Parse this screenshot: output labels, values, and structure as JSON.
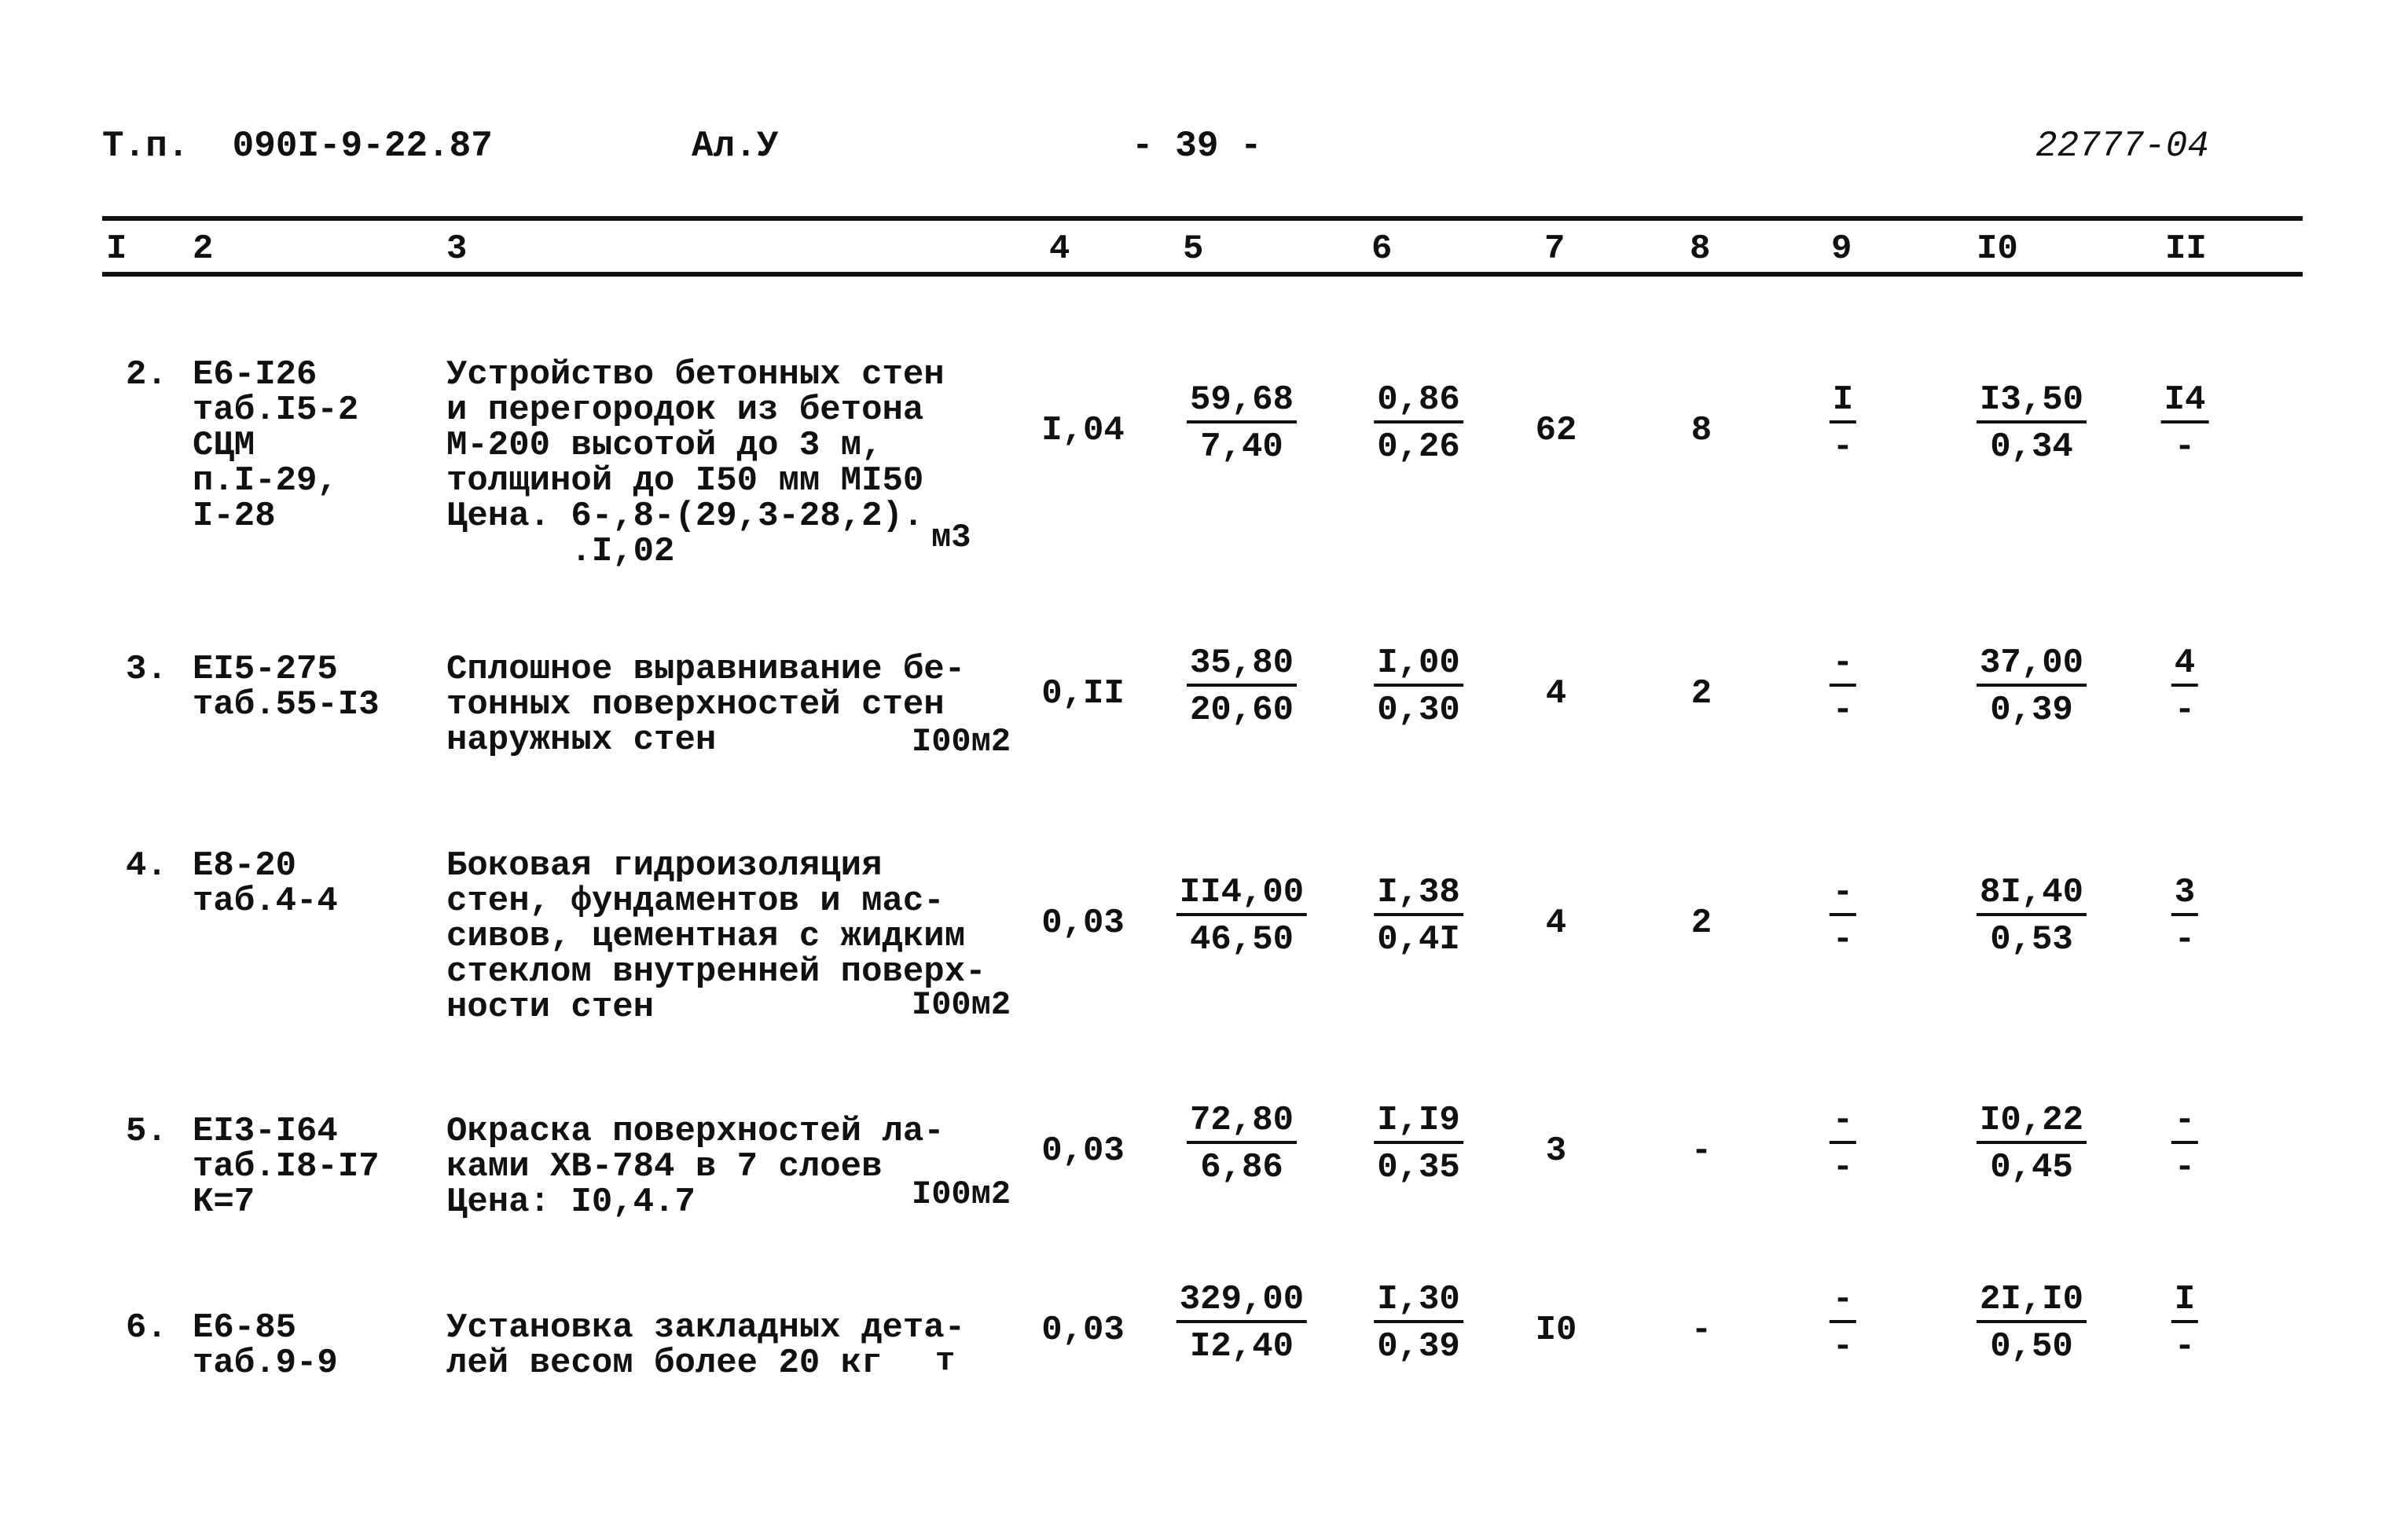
{
  "header": {
    "project": "Т.п.  090I-9-22.87",
    "album": "Ал.У",
    "page": "- 39 -",
    "doc_number": "22777-04"
  },
  "columns": [
    "I",
    "2",
    "3",
    "4",
    "5",
    "6",
    "7",
    "8",
    "9",
    "I0",
    "II"
  ],
  "rows": [
    {
      "num": "2.",
      "code": [
        "Е6-I26",
        "таб.I5-2",
        "СЦМ",
        "п.I-29,",
        "I-28"
      ],
      "description": [
        "Устройство бетонных стен",
        "и перегородок из бетона",
        "М-200 высотой до 3 м,",
        "толщиной до I50 мм МI50",
        "Цена. 6-,8-(29,3-28,2).",
        "      .I,02"
      ],
      "unit": "м3",
      "c4": "I,04",
      "c5": [
        "59,68",
        "7,40"
      ],
      "c6": [
        "0,86",
        "0,26"
      ],
      "c7": "62",
      "c8": "8",
      "c9": [
        "I",
        "-"
      ],
      "c10": [
        "I3,50",
        "0,34"
      ],
      "c11": [
        "I4",
        "-"
      ]
    },
    {
      "num": "3.",
      "code": [
        "ЕI5-275",
        "таб.55-I3"
      ],
      "description": [
        "Сплошное выравнивание бе-",
        "тонных поверхностей стен",
        "наружных стен"
      ],
      "unit": "I00м2",
      "c4": "0,II",
      "c5": [
        "35,80",
        "20,60"
      ],
      "c6": [
        "I,00",
        "0,30"
      ],
      "c7": "4",
      "c8": "2",
      "c9": [
        "-",
        "-"
      ],
      "c10": [
        "37,00",
        "0,39"
      ],
      "c11": [
        "4",
        "-"
      ]
    },
    {
      "num": "4.",
      "code": [
        "Е8-20",
        "таб.4-4"
      ],
      "description": [
        "Боковая гидроизоляция",
        "стен, фундаментов и мас-",
        "сивов, цементная с жидким",
        "стеклом внутренней поверх-",
        "ности стен"
      ],
      "unit": "I00м2",
      "c4": "0,03",
      "c5": [
        "II4,00",
        "46,50"
      ],
      "c6": [
        "I,38",
        "0,4I"
      ],
      "c7": "4",
      "c8": "2",
      "c9": [
        "-",
        "-"
      ],
      "c10": [
        "8I,40",
        "0,53"
      ],
      "c11": [
        "3",
        "-"
      ]
    },
    {
      "num": "5.",
      "code": [
        "ЕI3-I64",
        "таб.I8-I7",
        "К=7"
      ],
      "description": [
        "Окраска поверхностей ла-",
        "ками ХВ-784 в 7 слоев",
        "Цена: I0,4.7"
      ],
      "unit": "I00м2",
      "c4": "0,03",
      "c5": [
        "72,80",
        "6,86"
      ],
      "c6": [
        "I,I9",
        "0,35"
      ],
      "c7": "3",
      "c8": "-",
      "c9": [
        "-",
        "-"
      ],
      "c10": [
        "I0,22",
        "0,45"
      ],
      "c11": [
        "-",
        "-"
      ]
    },
    {
      "num": "6.",
      "code": [
        "Е6-85",
        "таб.9-9"
      ],
      "description": [
        "Установка закладных дета-",
        "лей весом более 20 кг"
      ],
      "unit": "т",
      "c4": "0,03",
      "c5": [
        "329,00",
        "I2,40"
      ],
      "c6": [
        "I,30",
        "0,39"
      ],
      "c7": "I0",
      "c8": "-",
      "c9": [
        "-",
        "-"
      ],
      "c10": [
        "2I,I0",
        "0,50"
      ],
      "c11": [
        "I",
        "-"
      ]
    }
  ]
}
